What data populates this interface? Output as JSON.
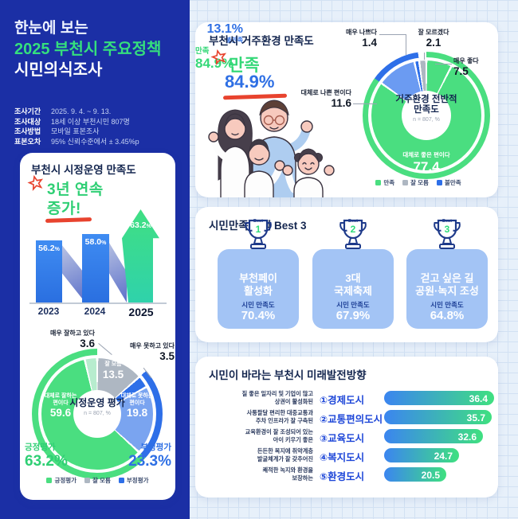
{
  "colors": {
    "panel_blue": "#1b2fa5",
    "green": "#35df7d",
    "blue": "#2e6fe4",
    "light_blue_card": "#a3c4f5",
    "red_accent": "#e8432e",
    "navy_text": "#14264f",
    "gray_segment": "#aeb7c2",
    "light_blue_segment": "#7aa4f0"
  },
  "header": {
    "line1": "한눈에 보는",
    "line2": "2025 부천시 주요정책",
    "line3": "시민의식조사",
    "info": [
      {
        "label": "조사기간",
        "value": "2025. 9. 4. ~ 9. 13."
      },
      {
        "label": "조사대상",
        "value": "18세 이상 부천시민 807명"
      },
      {
        "label": "조사방법",
        "value": "모바일 표본조사"
      },
      {
        "label": "표본오차",
        "value": "95% 신뢰수준에서 ± 3.45%p"
      }
    ]
  },
  "best3": {
    "title": "시민만족 정책 Best 3",
    "badge": "Best",
    "items": [
      {
        "rank": "1",
        "line1": "부천페이",
        "line2": "활성화",
        "metric": "시민 만족도",
        "value": "70.4%"
      },
      {
        "rank": "2",
        "line1": "3대",
        "line2": "국제축제",
        "metric": "시민 만족도",
        "value": "67.9%"
      },
      {
        "rank": "3",
        "line1": "걷고 싶은 길",
        "line2": "공원·녹지 조성",
        "metric": "시민 만족도",
        "value": "64.8%"
      }
    ]
  },
  "chart_data": [
    {
      "id": "ops_trend",
      "type": "bar",
      "title": "부천시 시정운영 만족도",
      "annotation_line1": "3년 연속",
      "annotation_line2": "증가!",
      "categories": [
        "2023",
        "2024",
        "2025"
      ],
      "values": [
        56.2,
        58.0,
        63.2
      ],
      "value_labels": [
        "56.2",
        "58.0",
        "63.2"
      ],
      "unit": "%",
      "ylim": [
        40,
        70
      ],
      "bar_color": "#2e7ce8",
      "highlight_color": "#3fdd82"
    },
    {
      "id": "ops_donut",
      "type": "pie",
      "center_title": "시정운영 평가",
      "center_note": "n = 807, %",
      "segments": [
        {
          "label": "잘 모름",
          "value": 13.5,
          "color": "#aeb7c2"
        },
        {
          "label": "매우 못하고 있다",
          "value": 3.5,
          "color": "#2e6fe8"
        },
        {
          "label": "대체로 못하는 편이다",
          "value": 19.8,
          "color": "#7aa4f0"
        },
        {
          "label": "대체로 잘하는 편이다",
          "value": 59.6,
          "color": "#4ade80"
        },
        {
          "label": "매우 잘하고 있다",
          "value": 3.6,
          "color": "#b7ecce"
        }
      ],
      "arcs": [
        {
          "from": 13.5,
          "to": 36.8,
          "color": "#2e6fe8"
        },
        {
          "from": 36.8,
          "to": 100,
          "color": "#4ade80"
        }
      ],
      "positive": {
        "label": "긍정평가",
        "value": "63.2%"
      },
      "negative": {
        "label": "부정평가",
        "value": "23.3%"
      },
      "legend": [
        {
          "label": "긍정평가",
          "color": "#4ade80"
        },
        {
          "label": "잘 모름",
          "color": "#aeb7c2"
        },
        {
          "label": "부정평가",
          "color": "#2e6fe8"
        }
      ]
    },
    {
      "id": "living_donut",
      "type": "pie",
      "title": "부천시 거주환경 만족도",
      "headline": {
        "word": "만족",
        "value": "84.9%"
      },
      "center_title": "거주환경 전반적 만족도",
      "center_note": "n = 807, %",
      "segments": [
        {
          "label": "매우 좋다",
          "value": 7.5,
          "color": "#4ade80"
        },
        {
          "label": "대체로 좋은 편이다",
          "value": 77.4,
          "color": "#4ade80"
        },
        {
          "label": "대체로 나쁜 편이다",
          "value": 11.6,
          "color": "#6b9bf2"
        },
        {
          "label": "매우 나쁘다",
          "value": 1.4,
          "color": "#2e6fe8"
        },
        {
          "label": "잘 모르겠다",
          "value": 2.1,
          "color": "#aeb7c2"
        }
      ],
      "arcs": [
        {
          "from": 0,
          "to": 84.9,
          "color": "#4ade80"
        },
        {
          "from": 84.9,
          "to": 97.9,
          "color": "#2e6fe8"
        }
      ],
      "satisfied": {
        "label": "만족",
        "value": "84.9%"
      },
      "dissatisfied": {
        "label": "불만족",
        "value": "13.1%"
      },
      "legend": [
        {
          "label": "만족",
          "color": "#4ade80"
        },
        {
          "label": "잘 모름",
          "color": "#aeb7c2"
        },
        {
          "label": "불만족",
          "color": "#2e6fe8"
        }
      ]
    },
    {
      "id": "future_bars",
      "type": "bar",
      "orientation": "horizontal",
      "title": "시민이 바라는 부천시 미래발전방향",
      "xmax": 36.4,
      "items": [
        {
          "num": "①",
          "city": "경제도시",
          "desc1": "질 좋은 일자리 및 기업이 많고",
          "desc2": "상권이 활성화된",
          "value": 36.4
        },
        {
          "num": "②",
          "city": "교통편의도시",
          "desc1": "사통팔달 편리한 대중교통과",
          "desc2": "주차 인프라가 잘 구축된",
          "value": 35.7
        },
        {
          "num": "③",
          "city": "교육도시",
          "desc1": "교육환경이 잘 조성되어 있는",
          "desc2": "아이 키우기 좋은",
          "value": 32.6
        },
        {
          "num": "④",
          "city": "복지도시",
          "desc1": "든든한 복지에 취약계층",
          "desc2": "발굴체계가 잘 갖추어진",
          "value": 24.7
        },
        {
          "num": "⑤",
          "city": "환경도시",
          "desc1": "쾌적한 녹지와 환경을",
          "desc2": "보장하는",
          "value": 20.5
        }
      ]
    }
  ]
}
